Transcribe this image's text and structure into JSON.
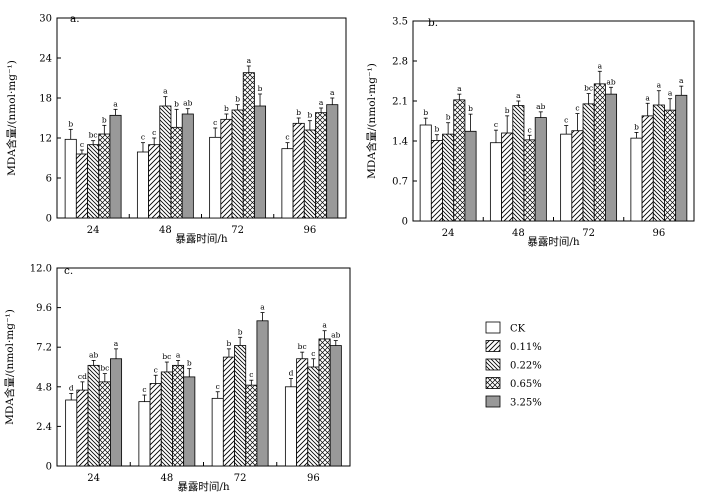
{
  "figure": {
    "series_names": [
      "CK",
      "0.11%",
      "0.22%",
      "0.65%",
      "3.25%"
    ]
  },
  "chart_data": [
    {
      "type": "bar",
      "panel_label": "a.",
      "categories": [
        "24",
        "48",
        "72",
        "96"
      ],
      "xlabel": "暴露时间/h",
      "ylabel": "MDA含量/(nmol·mg⁻¹)",
      "ylim": [
        0,
        30
      ],
      "yticks": [
        0,
        6,
        12,
        18,
        24,
        30
      ],
      "ytick_labels": [
        "0",
        "6",
        "12",
        "18",
        "24",
        "30"
      ],
      "series": [
        {
          "name": "CK",
          "values": [
            11.8,
            9.9,
            12.1,
            10.4
          ],
          "errors": [
            1.5,
            1.4,
            1.4,
            0.9
          ],
          "letters": [
            "b",
            "c",
            "c",
            "c"
          ]
        },
        {
          "name": "0.11%",
          "values": [
            9.6,
            11.0,
            14.8,
            14.2
          ],
          "errors": [
            0.6,
            1.0,
            0.8,
            0.8
          ],
          "letters": [
            "c",
            "c",
            "b",
            "b"
          ]
        },
        {
          "name": "0.22%",
          "values": [
            11.0,
            16.8,
            16.2,
            13.2
          ],
          "errors": [
            0.6,
            1.4,
            0.8,
            1.4
          ],
          "letters": [
            "bc",
            "a",
            "b",
            "b"
          ]
        },
        {
          "name": "0.65%",
          "values": [
            12.6,
            13.6,
            21.8,
            15.8
          ],
          "errors": [
            1.3,
            2.7,
            1.0,
            0.7
          ],
          "letters": [
            "b",
            "b",
            "a",
            "a"
          ]
        },
        {
          "name": "3.25%",
          "values": [
            15.4,
            15.6,
            16.8,
            17.0
          ],
          "errors": [
            0.9,
            0.8,
            1.8,
            1.0
          ],
          "letters": [
            "a",
            "ab",
            "b",
            "a"
          ]
        }
      ]
    },
    {
      "type": "bar",
      "panel_label": "b.",
      "categories": [
        "24",
        "48",
        "72",
        "96"
      ],
      "xlabel": "暴露时间/h",
      "ylabel": "MDA含量/(nmol·mg⁻¹)",
      "ylim": [
        0,
        3.5
      ],
      "yticks": [
        0,
        0.7,
        1.4,
        2.1,
        2.8,
        3.5
      ],
      "ytick_labels": [
        "0",
        "0.7",
        "1.4",
        "2.1",
        "2.8",
        "3.5"
      ],
      "series": [
        {
          "name": "CK",
          "values": [
            1.68,
            1.37,
            1.52,
            1.45
          ],
          "errors": [
            0.12,
            0.22,
            0.15,
            0.1
          ],
          "letters": [
            "b",
            "c",
            "c",
            "b"
          ]
        },
        {
          "name": "0.11%",
          "values": [
            1.41,
            1.54,
            1.58,
            1.84
          ],
          "errors": [
            0.1,
            0.3,
            0.3,
            0.22
          ],
          "letters": [
            "b",
            "b",
            "c",
            "a"
          ]
        },
        {
          "name": "0.22%",
          "values": [
            1.52,
            2.02,
            2.05,
            2.03
          ],
          "errors": [
            0.2,
            0.08,
            0.18,
            0.25
          ],
          "letters": [
            "b",
            "a",
            "bc",
            "a"
          ]
        },
        {
          "name": "0.65%",
          "values": [
            2.12,
            1.42,
            2.4,
            1.94
          ],
          "errors": [
            0.1,
            0.08,
            0.22,
            0.2
          ],
          "letters": [
            "a",
            "c",
            "a",
            "a"
          ]
        },
        {
          "name": "3.25%",
          "values": [
            1.57,
            1.81,
            2.22,
            2.2
          ],
          "errors": [
            0.3,
            0.1,
            0.12,
            0.16
          ],
          "letters": [
            "b",
            "ab",
            "ab",
            "a"
          ]
        }
      ]
    },
    {
      "type": "bar",
      "panel_label": "c.",
      "categories": [
        "24",
        "48",
        "72",
        "96"
      ],
      "xlabel": "暴露时间/h",
      "ylabel": "MDA含量/(nmol·mg⁻¹)",
      "ylim": [
        0,
        12
      ],
      "yticks": [
        0,
        2.4,
        4.8,
        7.2,
        9.6,
        12.0
      ],
      "ytick_labels": [
        "0",
        "2.4",
        "4.8",
        "7.2",
        "9.6",
        "12.0"
      ],
      "series": [
        {
          "name": "CK",
          "values": [
            4.0,
            3.9,
            4.1,
            4.8
          ],
          "errors": [
            0.4,
            0.4,
            0.4,
            0.5
          ],
          "letters": [
            "d",
            "c",
            "c",
            "d"
          ]
        },
        {
          "name": "0.11%",
          "values": [
            4.6,
            5.0,
            6.6,
            6.5
          ],
          "errors": [
            0.5,
            0.5,
            0.5,
            0.4
          ],
          "letters": [
            "cd",
            "c",
            "b",
            "bc"
          ]
        },
        {
          "name": "0.22%",
          "values": [
            6.1,
            5.7,
            7.3,
            6.0
          ],
          "errors": [
            0.3,
            0.6,
            0.5,
            0.5
          ],
          "letters": [
            "ab",
            "bc",
            "b",
            "c"
          ]
        },
        {
          "name": "0.65%",
          "values": [
            5.1,
            6.1,
            4.9,
            7.7
          ],
          "errors": [
            0.5,
            0.3,
            0.3,
            0.5
          ],
          "letters": [
            "bc",
            "a",
            "c",
            "a"
          ]
        },
        {
          "name": "3.25%",
          "values": [
            6.5,
            5.4,
            8.8,
            7.3
          ],
          "errors": [
            0.6,
            0.5,
            0.5,
            0.3
          ],
          "letters": [
            "a",
            "b",
            "a",
            "ab"
          ]
        }
      ]
    }
  ]
}
